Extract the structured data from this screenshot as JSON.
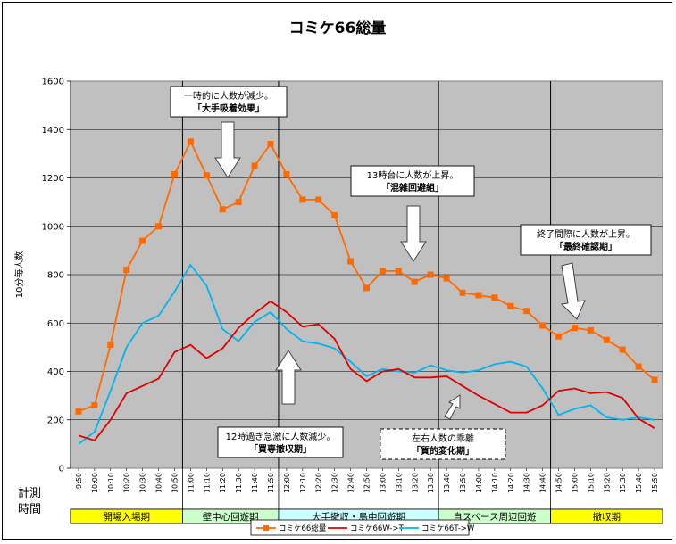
{
  "chart_data": {
    "type": "line",
    "title": "コミケ66総量",
    "xlabel": "",
    "ylabel": "10分毎人数",
    "ylim": [
      0,
      1600
    ],
    "yticks": [
      "0",
      "200",
      "400",
      "600",
      "800",
      "1000",
      "1200",
      "1400",
      "1600"
    ],
    "grid": true,
    "legend_position": "bottom",
    "categories": [
      "9:50",
      "10:00",
      "10:10",
      "10:20",
      "10:30",
      "10:40",
      "10:50",
      "11:00",
      "11:10",
      "11:20",
      "11:30",
      "11:40",
      "11:50",
      "12:00",
      "12:10",
      "12:20",
      "12:30",
      "12:40",
      "12:50",
      "13:00",
      "13:10",
      "13:20",
      "13:30",
      "13:40",
      "13:50",
      "14:00",
      "14:10",
      "14:20",
      "14:30",
      "14:40",
      "14:50",
      "15:00",
      "15:10",
      "15:20",
      "15:30",
      "15:40",
      "15:50"
    ],
    "series": [
      {
        "name": "コミケ66総量",
        "color": "#ff6a00",
        "marker": "square",
        "values": [
          235,
          260,
          510,
          820,
          940,
          1000,
          1215,
          1350,
          1210,
          1070,
          1100,
          1250,
          1340,
          1215,
          1110,
          1110,
          1045,
          855,
          745,
          815,
          815,
          770,
          800,
          785,
          725,
          715,
          705,
          670,
          650,
          590,
          545,
          580,
          570,
          530,
          490,
          420,
          365
        ]
      },
      {
        "name": "コミケ66W->T",
        "color": "#e00000",
        "marker": "none",
        "values": [
          135,
          115,
          200,
          310,
          340,
          370,
          480,
          510,
          455,
          495,
          580,
          640,
          690,
          645,
          585,
          595,
          535,
          410,
          360,
          400,
          410,
          375,
          375,
          380,
          340,
          300,
          265,
          230,
          230,
          260,
          320,
          330,
          310,
          315,
          290,
          205,
          165
        ]
      },
      {
        "name": "コミケ66T->W",
        "color": "#00b4ee",
        "marker": "none",
        "values": [
          100,
          150,
          320,
          500,
          600,
          630,
          730,
          840,
          755,
          575,
          525,
          605,
          645,
          575,
          525,
          515,
          495,
          440,
          380,
          410,
          400,
          395,
          425,
          405,
          395,
          405,
          430,
          440,
          420,
          330,
          220,
          245,
          260,
          210,
          200,
          210,
          200
        ]
      }
    ],
    "vlines_after": [
      "10:50",
      "11:50",
      "13:30",
      "14:40"
    ],
    "phases": [
      {
        "label": "開場入場期",
        "from": 0,
        "to": 7,
        "color": "#ffff00"
      },
      {
        "label": "壁中心回遊期",
        "from": 7,
        "to": 13,
        "color": "#ccffcc"
      },
      {
        "label": "大手撤収・島中回遊期",
        "from": 13,
        "to": 23,
        "color": "#ccffff"
      },
      {
        "label": "自スペース周辺回遊",
        "from": 23,
        "to": 30,
        "color": "#ccffcc"
      },
      {
        "label": "撤収期",
        "from": 30,
        "to": 37,
        "color": "#ffff00"
      }
    ],
    "phase_row_label": [
      "計測",
      "時間"
    ],
    "annotations": [
      {
        "lines": [
          "一時的に人数が減少。",
          "「大手吸着効果」"
        ],
        "dashed": false
      },
      {
        "lines": [
          "13時台に人数が上昇。",
          "「混雑回避組」"
        ],
        "dashed": false
      },
      {
        "lines": [
          "終了間際に人数が上昇。",
          "「最終確認期」"
        ],
        "dashed": false
      },
      {
        "lines": [
          "12時過ぎ急激に人数減少。",
          "「買専撤収期」"
        ],
        "dashed": false
      },
      {
        "lines": [
          "左右人数の乖離",
          "「質的変化期」"
        ],
        "dashed": true
      }
    ]
  }
}
